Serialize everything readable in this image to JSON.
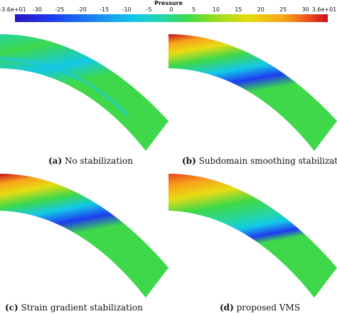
{
  "colorbar": {
    "title": "Pressure",
    "ticks": [
      "-3.6e+01",
      "-30",
      "-25",
      "-20",
      "-15",
      "-10",
      "-5",
      "0",
      "5",
      "10",
      "15",
      "20",
      "25",
      "30",
      "3.6e+01"
    ]
  },
  "panels": [
    {
      "tag": "(a)",
      "label": "No stabilization"
    },
    {
      "tag": "(b)",
      "label": "Subdomain smoothing stabilization"
    },
    {
      "tag": "(c)",
      "label": "Strain gradient stabilization"
    },
    {
      "tag": "(d)",
      "label": "proposed VMS"
    }
  ],
  "colors": {
    "green": "#3fd84a",
    "cyan": "#13c8e8",
    "blue": "#1e3cf0",
    "red": "#c8101e",
    "yellow": "#e7dc12"
  }
}
